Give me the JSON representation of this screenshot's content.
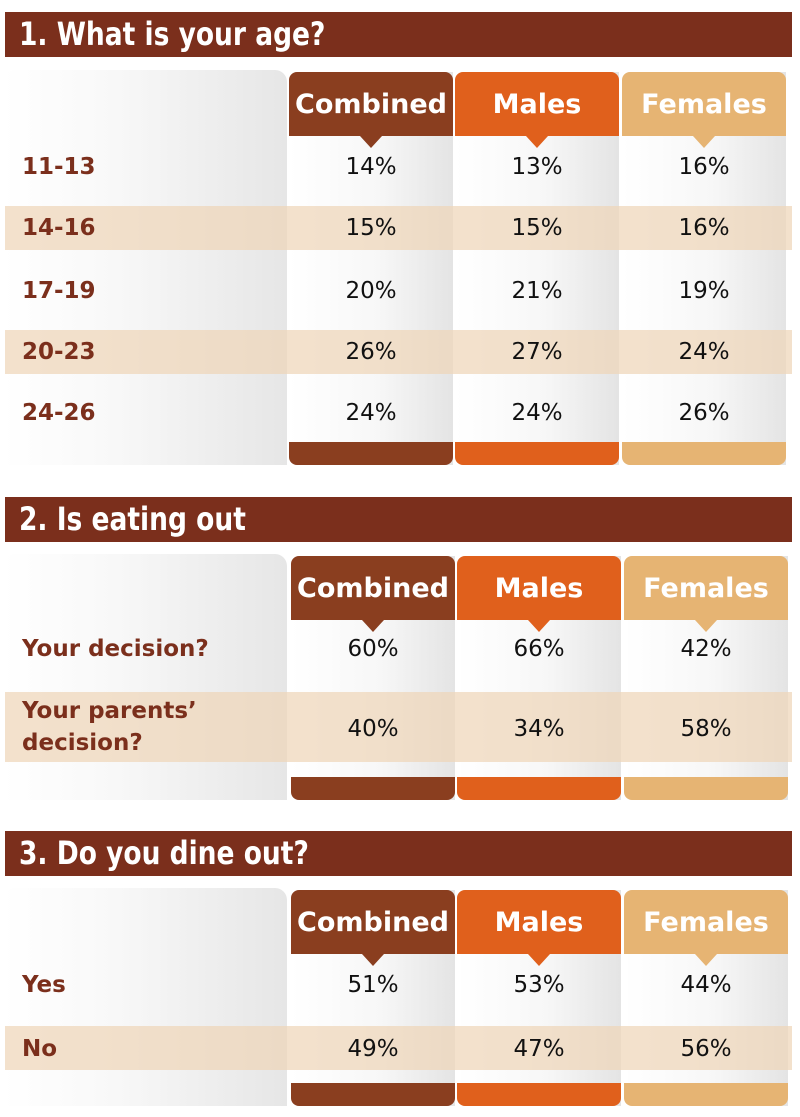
{
  "chart_data": [
    {
      "type": "table",
      "title": "1. What is your age?",
      "columns": [
        "Combined",
        "Males",
        "Females"
      ],
      "rows": [
        {
          "label": "11-13",
          "values": [
            "14%",
            "13%",
            "16%"
          ]
        },
        {
          "label": "14-16",
          "values": [
            "15%",
            "15%",
            "16%"
          ]
        },
        {
          "label": "17-19",
          "values": [
            "20%",
            "21%",
            "19%"
          ]
        },
        {
          "label": "20-23",
          "values": [
            "26%",
            "27%",
            "24%"
          ]
        },
        {
          "label": "24-26",
          "values": [
            "24%",
            "24%",
            "26%"
          ]
        }
      ]
    },
    {
      "type": "table",
      "title": "2. Is eating out",
      "columns": [
        "Combined",
        "Males",
        "Females"
      ],
      "rows": [
        {
          "label": "Your decision?",
          "values": [
            "60%",
            "66%",
            "42%"
          ]
        },
        {
          "label": "Your parents’ decision?",
          "label_lines": [
            "Your parents’",
            "decision?"
          ],
          "values": [
            "40%",
            "34%",
            "58%"
          ]
        }
      ]
    },
    {
      "type": "table",
      "title": "3. Do you dine out?",
      "columns": [
        "Combined",
        "Males",
        "Females"
      ],
      "rows": [
        {
          "label": "Yes",
          "values": [
            "51%",
            "53%",
            "44%"
          ]
        },
        {
          "label": "No",
          "values": [
            "49%",
            "47%",
            "56%"
          ]
        }
      ]
    }
  ],
  "colors": {
    "banner": "#7b2f1c",
    "label_text": "#7b2f1c",
    "combined": "#8a3e1f",
    "males": "#e0601c",
    "females": "#e6b473",
    "stripe": "#eed6b8"
  }
}
